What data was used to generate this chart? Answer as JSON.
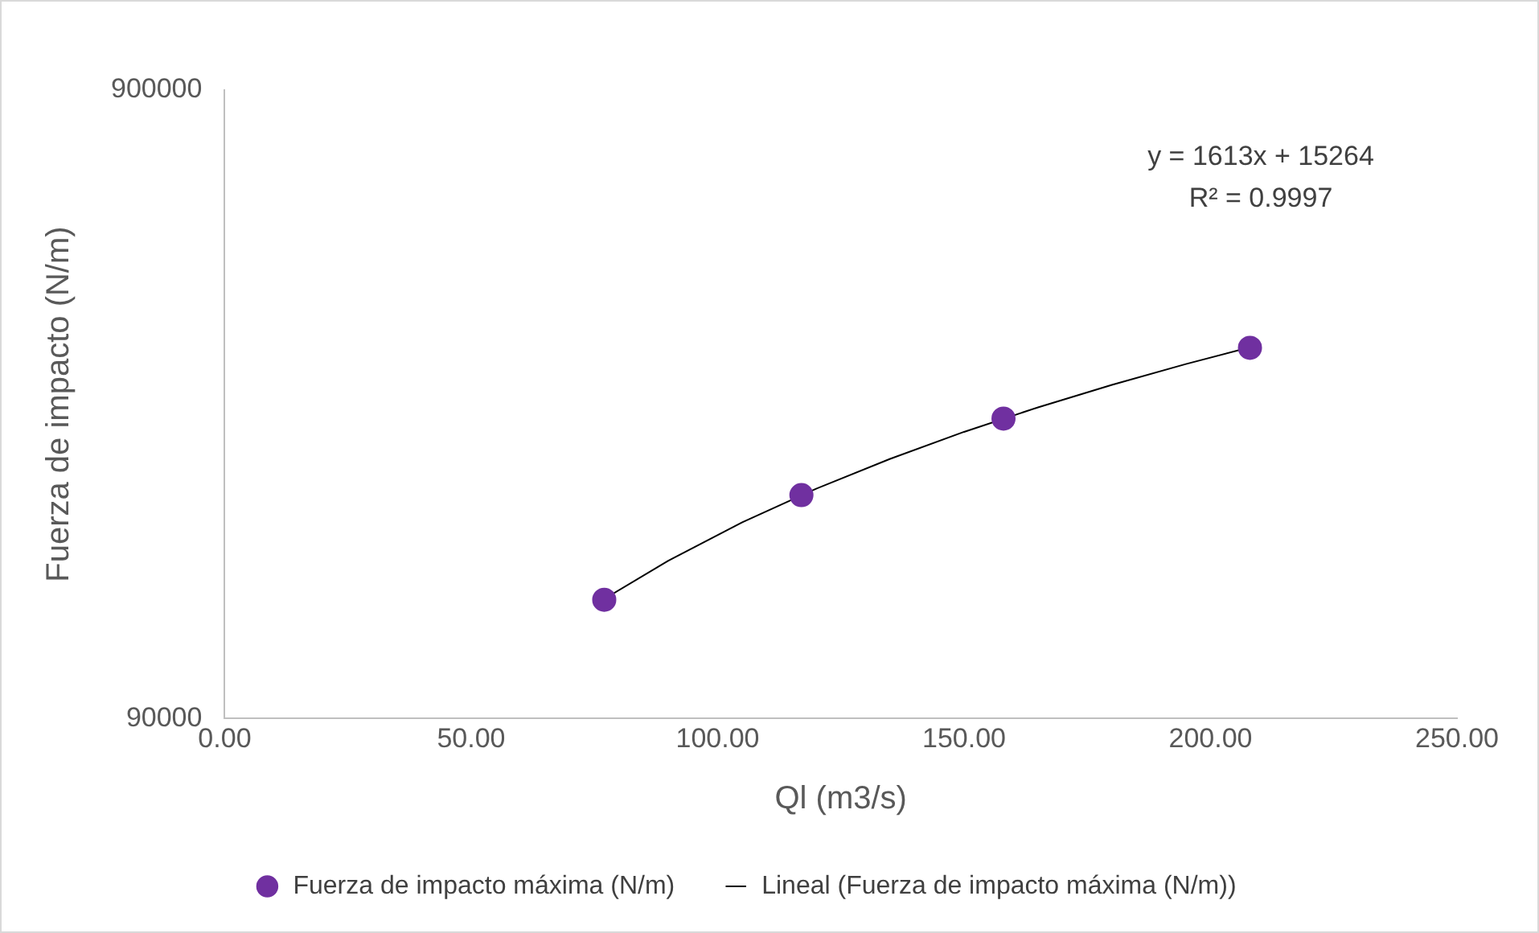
{
  "chart_data": {
    "type": "scatter",
    "xlabel": "Ql (m3/s)",
    "ylabel": "Fuerza de impacto (N/m)",
    "log": "y",
    "xlim": [
      0,
      250
    ],
    "ylim": [
      90000,
      900000
    ],
    "xticks": [
      {
        "value": 0,
        "label": "0.00"
      },
      {
        "value": 50,
        "label": "50.00"
      },
      {
        "value": 100,
        "label": "100.00"
      },
      {
        "value": 150,
        "label": "150.00"
      },
      {
        "value": 200,
        "label": "200.00"
      },
      {
        "value": 250,
        "label": "250.00"
      }
    ],
    "yticks": [
      90000,
      900000
    ],
    "grid": false,
    "legend": "bottom",
    "marker": "circle",
    "annotations": [
      "y = 1613x + 15264",
      "R² = 0.9997"
    ],
    "series": [
      {
        "name": "Fuerza de impacto máxima (N/m)",
        "type": "scatter",
        "color": "#7030a0",
        "x": [
          77,
          117,
          158,
          208
        ],
        "values": [
          139000,
          204000,
          270000,
          350000
        ]
      },
      {
        "name": "Lineal (Fuerza de impacto máxima (N/m))",
        "type": "line",
        "color": "#000000",
        "marker": "none",
        "line_style": "solid",
        "x": [
          77,
          90,
          105,
          120,
          135,
          150,
          165,
          180,
          195,
          208
        ],
        "values": [
          139465,
          160434,
          184629,
          208824,
          233019,
          257214,
          281409,
          305604,
          329799,
          350768
        ]
      }
    ]
  }
}
